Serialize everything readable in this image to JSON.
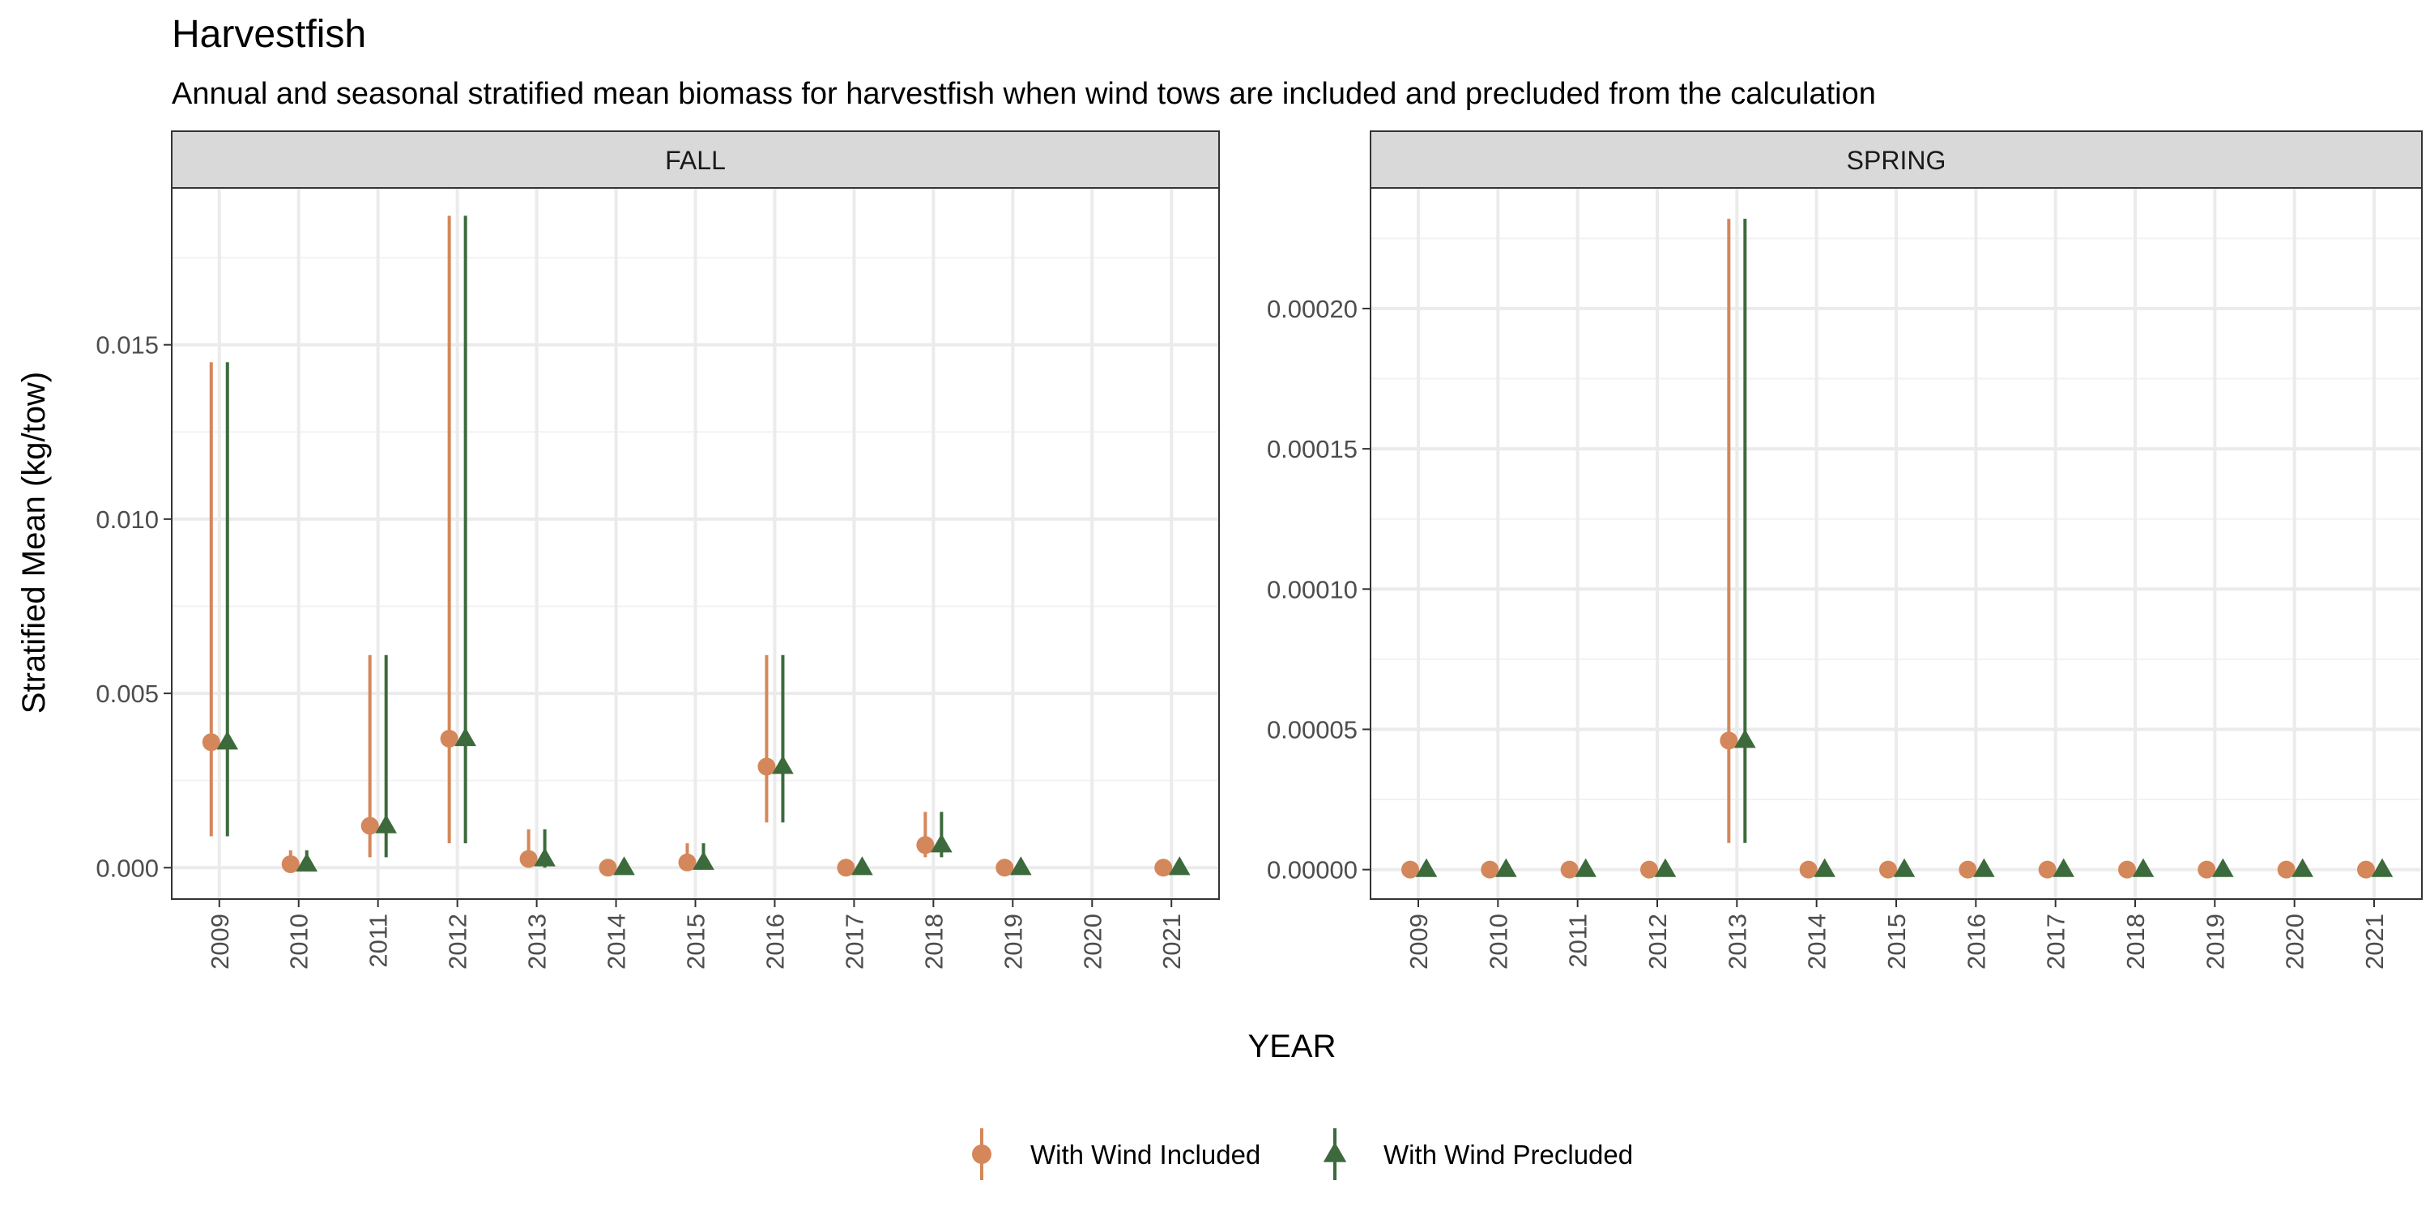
{
  "chart_data": {
    "type": "scatter",
    "title": "Harvestfish",
    "subtitle": "Annual and seasonal stratified mean biomass for harvestfish when wind tows are included and precluded from the calculation",
    "xlabel": "YEAR",
    "ylabel": "Stratified Mean (kg/tow)",
    "grid": true,
    "legend_position": "bottom",
    "colors": {
      "included": "#D4875A",
      "precluded": "#3C6A3C"
    },
    "legend": [
      {
        "key": "included",
        "label": "With Wind Included",
        "shape": "circle"
      },
      {
        "key": "precluded",
        "label": "With Wind Precluded",
        "shape": "triangle"
      }
    ],
    "panels": [
      {
        "strip": "FALL",
        "ylim": [
          -0.0009,
          0.0195
        ],
        "yticks": [
          0,
          0.005,
          0.01,
          0.015
        ],
        "ytick_labels": [
          "0.000",
          "0.005",
          "0.010",
          "0.015"
        ],
        "xticks": [
          "2009",
          "2010",
          "2011",
          "2012",
          "2013",
          "2014",
          "2015",
          "2016",
          "2017",
          "2018",
          "2019",
          "2020",
          "2021"
        ],
        "series": [
          {
            "key": "included",
            "name": "With Wind Included",
            "points": [
              {
                "x": 2009,
                "y": 0.0036,
                "lo": 0.0009,
                "hi": 0.0145
              },
              {
                "x": 2010,
                "y": 0.0001,
                "lo": 0.0,
                "hi": 0.0005
              },
              {
                "x": 2011,
                "y": 0.0012,
                "lo": 0.0003,
                "hi": 0.0061
              },
              {
                "x": 2012,
                "y": 0.0037,
                "lo": 0.0007,
                "hi": 0.0187
              },
              {
                "x": 2013,
                "y": 0.00025,
                "lo": 0.0,
                "hi": 0.0011
              },
              {
                "x": 2014,
                "y": 0.0,
                "lo": 0.0,
                "hi": 0.0
              },
              {
                "x": 2015,
                "y": 0.00015,
                "lo": 0.0,
                "hi": 0.0007
              },
              {
                "x": 2016,
                "y": 0.0029,
                "lo": 0.0013,
                "hi": 0.0061
              },
              {
                "x": 2017,
                "y": 0.0,
                "lo": 0.0,
                "hi": 0.0
              },
              {
                "x": 2018,
                "y": 0.00065,
                "lo": 0.0003,
                "hi": 0.0016
              },
              {
                "x": 2019,
                "y": 0.0,
                "lo": 0.0,
                "hi": 0.0
              },
              {
                "x": 2021,
                "y": 0.0,
                "lo": 0.0,
                "hi": 0.0
              }
            ]
          },
          {
            "key": "precluded",
            "name": "With Wind Precluded",
            "points": [
              {
                "x": 2009,
                "y": 0.0036,
                "lo": 0.0009,
                "hi": 0.0145
              },
              {
                "x": 2010,
                "y": 0.0001,
                "lo": 0.0,
                "hi": 0.0005
              },
              {
                "x": 2011,
                "y": 0.0012,
                "lo": 0.0003,
                "hi": 0.0061
              },
              {
                "x": 2012,
                "y": 0.0037,
                "lo": 0.0007,
                "hi": 0.0187
              },
              {
                "x": 2013,
                "y": 0.00025,
                "lo": 0.0,
                "hi": 0.0011
              },
              {
                "x": 2014,
                "y": 0.0,
                "lo": 0.0,
                "hi": 0.0
              },
              {
                "x": 2015,
                "y": 0.00015,
                "lo": 0.0,
                "hi": 0.0007
              },
              {
                "x": 2016,
                "y": 0.0029,
                "lo": 0.0013,
                "hi": 0.0061
              },
              {
                "x": 2017,
                "y": 0.0,
                "lo": 0.0,
                "hi": 0.0
              },
              {
                "x": 2018,
                "y": 0.00065,
                "lo": 0.0003,
                "hi": 0.0016
              },
              {
                "x": 2019,
                "y": 0.0,
                "lo": 0.0,
                "hi": 0.0
              },
              {
                "x": 2021,
                "y": 0.0,
                "lo": 0.0,
                "hi": 0.0
              }
            ]
          }
        ]
      },
      {
        "strip": "SPRING",
        "ylim": [
          -1.05e-05,
          0.000243
        ],
        "yticks": [
          0,
          5e-05,
          0.0001,
          0.00015,
          0.0002
        ],
        "ytick_labels": [
          "0.00000",
          "0.00005",
          "0.00010",
          "0.00015",
          "0.00020"
        ],
        "xticks": [
          "2009",
          "2010",
          "2011",
          "2012",
          "2013",
          "2014",
          "2015",
          "2016",
          "2017",
          "2018",
          "2019",
          "2020",
          "2021"
        ],
        "series": [
          {
            "key": "included",
            "name": "With Wind Included",
            "points": [
              {
                "x": 2009,
                "y": 0.0,
                "lo": 0.0,
                "hi": 0.0
              },
              {
                "x": 2010,
                "y": 0.0,
                "lo": 0.0,
                "hi": 0.0
              },
              {
                "x": 2011,
                "y": 0.0,
                "lo": 0.0,
                "hi": 0.0
              },
              {
                "x": 2012,
                "y": 0.0,
                "lo": 0.0,
                "hi": 0.0
              },
              {
                "x": 2013,
                "y": 4.6e-05,
                "lo": 9.5e-06,
                "hi": 0.000232
              },
              {
                "x": 2014,
                "y": 0.0,
                "lo": 0.0,
                "hi": 0.0
              },
              {
                "x": 2015,
                "y": 0.0,
                "lo": 0.0,
                "hi": 0.0
              },
              {
                "x": 2016,
                "y": 0.0,
                "lo": 0.0,
                "hi": 0.0
              },
              {
                "x": 2017,
                "y": 0.0,
                "lo": 0.0,
                "hi": 0.0
              },
              {
                "x": 2018,
                "y": 0.0,
                "lo": 0.0,
                "hi": 0.0
              },
              {
                "x": 2019,
                "y": 0.0,
                "lo": 0.0,
                "hi": 0.0
              },
              {
                "x": 2020,
                "y": 0.0,
                "lo": 0.0,
                "hi": 0.0
              },
              {
                "x": 2021,
                "y": 0.0,
                "lo": 0.0,
                "hi": 0.0
              }
            ]
          },
          {
            "key": "precluded",
            "name": "With Wind Precluded",
            "points": [
              {
                "x": 2009,
                "y": 0.0,
                "lo": 0.0,
                "hi": 0.0
              },
              {
                "x": 2010,
                "y": 0.0,
                "lo": 0.0,
                "hi": 0.0
              },
              {
                "x": 2011,
                "y": 0.0,
                "lo": 0.0,
                "hi": 0.0
              },
              {
                "x": 2012,
                "y": 0.0,
                "lo": 0.0,
                "hi": 0.0
              },
              {
                "x": 2013,
                "y": 4.6e-05,
                "lo": 9.5e-06,
                "hi": 0.000232
              },
              {
                "x": 2014,
                "y": 0.0,
                "lo": 0.0,
                "hi": 0.0
              },
              {
                "x": 2015,
                "y": 0.0,
                "lo": 0.0,
                "hi": 0.0
              },
              {
                "x": 2016,
                "y": 0.0,
                "lo": 0.0,
                "hi": 0.0
              },
              {
                "x": 2017,
                "y": 0.0,
                "lo": 0.0,
                "hi": 0.0
              },
              {
                "x": 2018,
                "y": 0.0,
                "lo": 0.0,
                "hi": 0.0
              },
              {
                "x": 2019,
                "y": 0.0,
                "lo": 0.0,
                "hi": 0.0
              },
              {
                "x": 2020,
                "y": 0.0,
                "lo": 0.0,
                "hi": 0.0
              },
              {
                "x": 2021,
                "y": 0.0,
                "lo": 0.0,
                "hi": 0.0
              }
            ]
          }
        ]
      }
    ]
  }
}
